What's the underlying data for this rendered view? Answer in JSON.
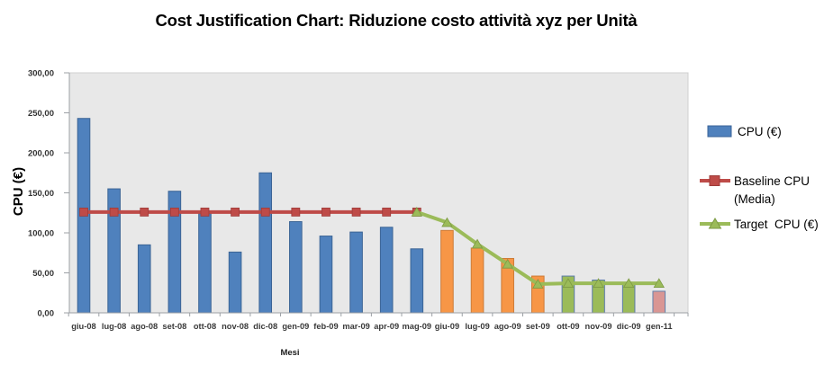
{
  "title": "Cost Justification Chart: Riduzione costo attività xyz per Unità",
  "y_axis_title": "CPU (€)",
  "x_axis_title": "Mesi",
  "legend": {
    "items": [
      {
        "label": "CPU (€)",
        "marker": "bar-swatch",
        "color": "#4F81BD"
      },
      {
        "label": "Baseline CPU (Media)",
        "marker": "line-square",
        "color": "#BE4B48"
      },
      {
        "label": "Target  CPU (€)",
        "marker": "line-triangle",
        "color": "#9BBB59"
      }
    ]
  },
  "chart_data": {
    "type": "bar",
    "subtype": "bar+line combo",
    "title": "Cost Justification Chart: Riduzione costo attività xyz per Unità",
    "xlabel": "Mesi",
    "ylabel": "CPU (€)",
    "ylim": [
      0,
      300
    ],
    "y_ticks": [
      "0,00",
      "50,00",
      "100,00",
      "150,00",
      "200,00",
      "250,00",
      "300,00"
    ],
    "grid": false,
    "legend_position": "right",
    "plot_bg": "#E8E8E8",
    "categories": [
      "giu-08",
      "lug-08",
      "ago-08",
      "set-08",
      "ott-08",
      "nov-08",
      "dic-08",
      "gen-09",
      "feb-09",
      "mar-09",
      "apr-09",
      "mag-09",
      "giu-09",
      "lug-09",
      "ago-09",
      "set-09",
      "ott-09",
      "nov-09",
      "dic-09",
      "gen-11"
    ],
    "series": [
      {
        "name": "CPU (€)",
        "type": "bar",
        "values": [
          243,
          155,
          85,
          152,
          124,
          76,
          175,
          114,
          96,
          101,
          107,
          80,
          103,
          81,
          68,
          46,
          46,
          41,
          37,
          27
        ],
        "bar_colors": [
          "#4F81BD",
          "#4F81BD",
          "#4F81BD",
          "#4F81BD",
          "#4F81BD",
          "#4F81BD",
          "#4F81BD",
          "#4F81BD",
          "#4F81BD",
          "#4F81BD",
          "#4F81BD",
          "#4F81BD",
          "#F79646",
          "#F79646",
          "#F79646",
          "#F79646",
          "#9BBB59",
          "#9BBB59",
          "#9BBB59",
          "#D99694"
        ]
      },
      {
        "name": "Baseline CPU (Media)",
        "type": "line",
        "marker": "square",
        "color": "#BE4B48",
        "values": [
          126,
          126,
          126,
          126,
          126,
          126,
          126,
          126,
          126,
          126,
          126,
          126,
          null,
          null,
          null,
          null,
          null,
          null,
          null,
          null
        ]
      },
      {
        "name": "Target CPU (€)",
        "type": "line",
        "marker": "triangle",
        "color": "#9BBB59",
        "values": [
          null,
          null,
          null,
          null,
          null,
          null,
          null,
          null,
          null,
          null,
          null,
          126,
          113,
          86,
          61,
          36,
          37,
          37,
          37,
          37
        ]
      }
    ]
  }
}
